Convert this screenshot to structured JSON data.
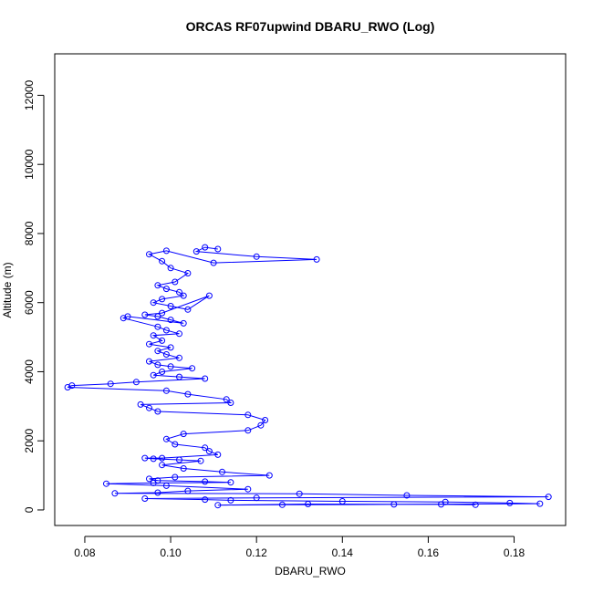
{
  "chart_data": {
    "type": "scatter",
    "title": "ORCAS RF07upwind DBARU_RWO (Log)",
    "xlabel": "DBARU_RWO",
    "ylabel": "Altitude (m)",
    "xlim": [
      0.073,
      0.192
    ],
    "ylim": [
      -450,
      13200
    ],
    "x_ticks": [
      0.08,
      0.1,
      0.12,
      0.14,
      0.16,
      0.18
    ],
    "x_tick_labels": [
      "0.08",
      "0.10",
      "0.12",
      "0.14",
      "0.16",
      "0.18"
    ],
    "y_ticks": [
      0,
      2000,
      4000,
      6000,
      8000,
      10000,
      12000
    ],
    "y_tick_labels": [
      "0",
      "2000",
      "4000",
      "6000",
      "8000",
      "10000",
      "12000"
    ],
    "grid": false,
    "legend": "none",
    "marker": "open-circle",
    "connected": true,
    "color": "#0000ff",
    "series": [
      {
        "x": [
          0.111,
          0.108,
          0.106,
          0.12,
          0.134,
          0.11,
          0.099,
          0.095,
          0.098,
          0.1,
          0.104,
          0.101,
          0.097,
          0.099,
          0.102,
          0.103,
          0.098,
          0.096,
          0.1,
          0.104,
          0.109,
          0.098,
          0.094,
          0.097,
          0.1,
          0.103,
          0.09,
          0.089,
          0.097,
          0.099,
          0.102,
          0.096,
          0.098,
          0.095,
          0.1,
          0.097,
          0.099,
          0.102,
          0.095,
          0.097,
          0.1,
          0.105,
          0.098,
          0.096,
          0.102,
          0.108,
          0.092,
          0.086,
          0.077,
          0.076,
          0.099,
          0.104,
          0.113,
          0.114,
          0.093,
          0.095,
          0.097,
          0.118,
          0.122,
          0.121,
          0.118,
          0.103,
          0.099,
          0.101,
          0.108,
          0.109,
          0.111,
          0.098,
          0.094,
          0.096,
          0.102,
          0.107,
          0.098,
          0.103,
          0.112,
          0.123,
          0.101,
          0.095,
          0.097,
          0.108,
          0.114,
          0.096,
          0.085,
          0.099,
          0.118,
          0.104,
          0.097,
          0.087,
          0.13,
          0.155,
          0.188,
          0.12,
          0.094,
          0.108,
          0.114,
          0.14,
          0.164,
          0.179,
          0.186,
          0.152,
          0.126,
          0.111,
          0.132,
          0.163,
          0.171
        ],
        "y": [
          7550,
          7600,
          7480,
          7330,
          7250,
          7150,
          7500,
          7400,
          7200,
          7000,
          6850,
          6600,
          6500,
          6400,
          6300,
          6200,
          6100,
          6000,
          5900,
          5800,
          6200,
          5700,
          5650,
          5600,
          5500,
          5400,
          5600,
          5550,
          5300,
          5200,
          5100,
          5050,
          4900,
          4800,
          4700,
          4600,
          4500,
          4400,
          4300,
          4200,
          4150,
          4100,
          4000,
          3900,
          3850,
          3800,
          3700,
          3650,
          3600,
          3550,
          3450,
          3350,
          3200,
          3100,
          3050,
          2950,
          2850,
          2750,
          2600,
          2450,
          2300,
          2200,
          2050,
          1900,
          1800,
          1700,
          1600,
          1500,
          1500,
          1480,
          1450,
          1420,
          1300,
          1200,
          1100,
          1000,
          950,
          900,
          850,
          820,
          800,
          780,
          760,
          700,
          600,
          550,
          500,
          480,
          470,
          420,
          380,
          350,
          330,
          300,
          280,
          250,
          230,
          200,
          180,
          160,
          150,
          140,
          170,
          160,
          150
        ]
      }
    ]
  }
}
